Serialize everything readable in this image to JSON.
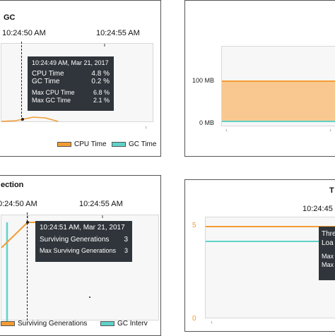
{
  "panel_cpu": {
    "title": "GC",
    "times": [
      "10:24:50 AM",
      "10:24:55 AM"
    ],
    "tooltip": {
      "timestamp": "10:24:49 AM, Mar 21, 2017",
      "rows": [
        {
          "label": "CPU Time",
          "value": "4.8 %"
        },
        {
          "label": "GC Time",
          "value": "0.2 %"
        }
      ],
      "max_rows": [
        {
          "label": "Max CPU Time",
          "value": "6.8 %"
        },
        {
          "label": "Max GC Time",
          "value": "2.1 %"
        }
      ]
    },
    "legend": [
      {
        "label": "CPU Time",
        "color": "#f39c33"
      },
      {
        "label": "GC Time",
        "color": "#5fd3c9"
      }
    ],
    "scroll_right": "›"
  },
  "panel_heap": {
    "y_labels": [
      "100 MB",
      "0 MB"
    ],
    "fill_color": "#f9c891",
    "line_color": "#f39c33",
    "base_color": "#5fd3c9",
    "scroll_left": "‹",
    "scroll_right": "›"
  },
  "panel_collection": {
    "title": "ection",
    "times": [
      "0:24:50 AM",
      "10:24:55 AM"
    ],
    "tooltip": {
      "timestamp": "10:24:51 AM, Mar 21, 2017",
      "rows": [
        {
          "label": "Surviving Generations",
          "value": "3"
        }
      ],
      "max_rows": [
        {
          "label": "Max Surviving Generations",
          "value": "3"
        }
      ]
    },
    "legend": [
      {
        "label": "Surviving Generations",
        "color": "#f39c33"
      },
      {
        "label": "GC Interv",
        "color": "#5fd3c9"
      }
    ]
  },
  "panel_threads": {
    "title": "T",
    "times": [
      "10:24:45"
    ],
    "y_labels": [
      "5",
      "0"
    ],
    "tooltip_lines": [
      "Thre",
      "Loa",
      "Max",
      "Max"
    ],
    "scroll_left": "‹"
  }
}
